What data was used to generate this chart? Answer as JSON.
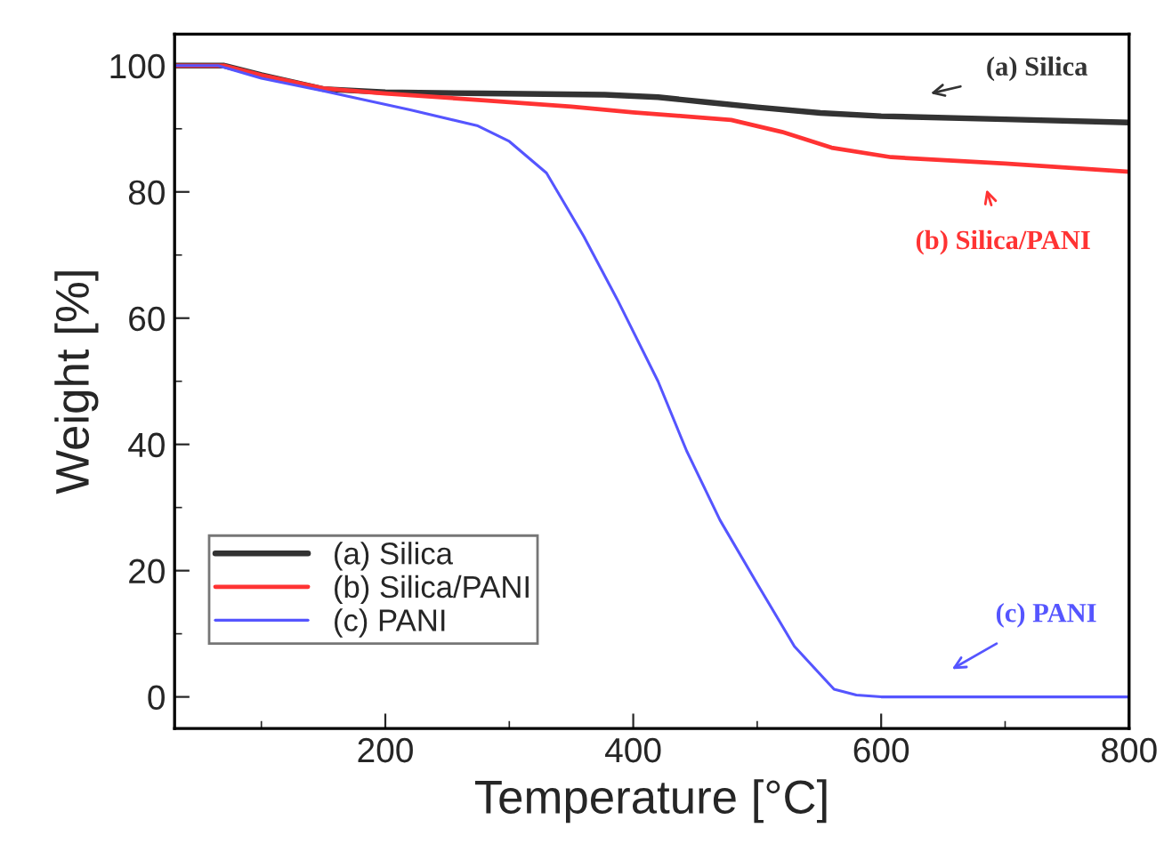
{
  "chart_data": {
    "type": "line",
    "xlabel": "Temperature [°C]",
    "ylabel": "Weight [%]",
    "xlim": [
      30,
      800
    ],
    "ylim": [
      -5,
      105
    ],
    "xticks": [
      200,
      400,
      600,
      800
    ],
    "yticks": [
      0,
      20,
      40,
      60,
      80,
      100
    ],
    "grid": false,
    "legend": "bottom left",
    "marker": "none",
    "line_style": "solid",
    "series": [
      {
        "name": "(a) Silica",
        "color": "#333333",
        "x": [
          30,
          70,
          100,
          150,
          200,
          280,
          377,
          420,
          460,
          500,
          551,
          600,
          700,
          800
        ],
        "values": [
          100,
          100,
          98.5,
          96.3,
          95.8,
          95.6,
          95.4,
          95,
          94.2,
          93.4,
          92.5,
          92,
          91.5,
          91
        ]
      },
      {
        "name": "(b) Silica/PANI",
        "color": "#ff3333",
        "x": [
          30,
          70,
          100,
          150,
          200,
          280,
          350,
          400,
          440,
          479,
          520,
          560,
          608,
          700,
          800
        ],
        "values": [
          100,
          100,
          98.5,
          96.4,
          95.6,
          94.5,
          93.5,
          92.6,
          92,
          91.4,
          89.5,
          87,
          85.5,
          84.5,
          83.2
        ]
      },
      {
        "name": "(c) PANI",
        "color": "#5555ff",
        "x": [
          30,
          65,
          100,
          150,
          220,
          274,
          300,
          330,
          360,
          387,
          420,
          443,
          470,
          501,
          530,
          562,
          580,
          600,
          700,
          800
        ],
        "values": [
          100,
          100,
          98,
          96,
          93,
          90.5,
          88,
          83,
          73,
          63,
          50,
          39,
          28,
          17.6,
          8,
          1.2,
          0.3,
          0,
          0,
          0
        ]
      }
    ],
    "annotations": [
      "(a) Silica",
      "(b) Silica/PANI",
      "(c) PANI"
    ]
  }
}
